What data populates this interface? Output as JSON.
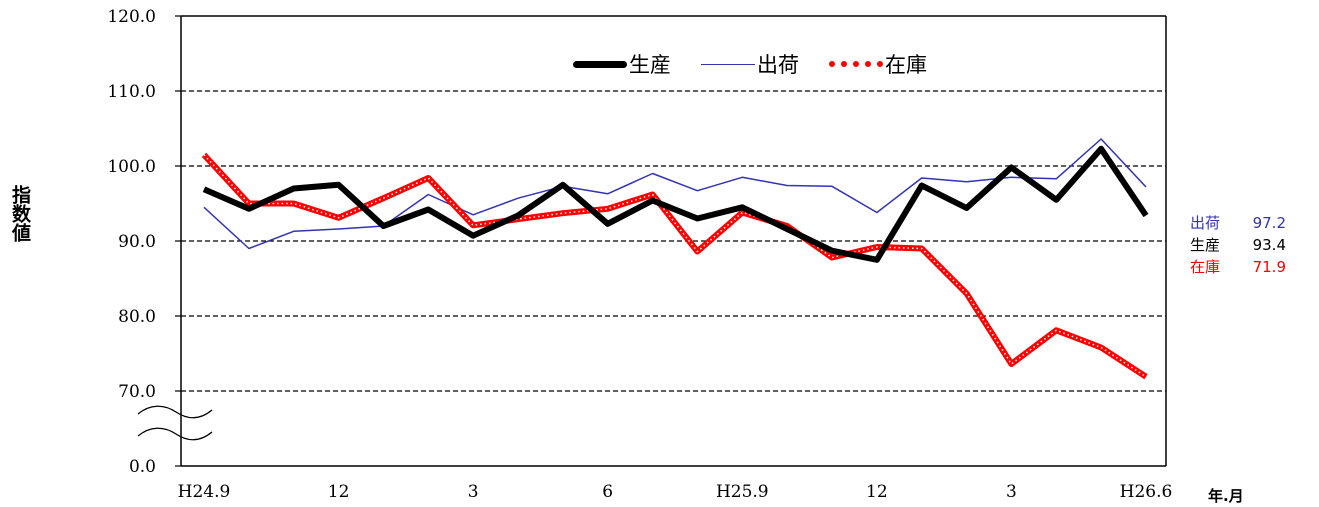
{
  "chart_data": {
    "type": "line",
    "ylabel": "指数値",
    "xlabel": "年.月",
    "y_ticks": [
      "0.0",
      "70.0",
      "80.0",
      "90.0",
      "100.0",
      "110.0",
      "120.0"
    ],
    "y_axis_break": true,
    "ylim": [
      70,
      120
    ],
    "x_ticks": [
      {
        "index": 0,
        "label": "H24.9"
      },
      {
        "index": 3,
        "label": "12"
      },
      {
        "index": 6,
        "label": "3"
      },
      {
        "index": 9,
        "label": "6"
      },
      {
        "index": 12,
        "label": "H25.9"
      },
      {
        "index": 15,
        "label": "12"
      },
      {
        "index": 18,
        "label": "3"
      },
      {
        "index": 21,
        "label": "H26.6"
      }
    ],
    "legend_position": "top-center",
    "grid": true,
    "series": [
      {
        "name": "生産",
        "color": "#000000",
        "style": "thick",
        "values": [
          96.9,
          94.3,
          97.0,
          97.5,
          92.0,
          94.2,
          90.7,
          93.4,
          97.5,
          92.3,
          95.4,
          93.0,
          94.5,
          91.6,
          88.7,
          87.5,
          97.4,
          94.4,
          99.8,
          95.5,
          102.3,
          93.4
        ]
      },
      {
        "name": "出荷",
        "color": "#3333b3",
        "style": "thin",
        "values": [
          94.5,
          89.0,
          91.3,
          91.6,
          92.0,
          96.2,
          93.5,
          95.7,
          97.3,
          96.3,
          99.0,
          96.7,
          98.5,
          97.4,
          97.3,
          93.8,
          98.4,
          97.9,
          98.5,
          98.3,
          103.6,
          97.2
        ]
      },
      {
        "name": "在庫",
        "color": "#ff0000",
        "style": "dotted",
        "values": [
          101.5,
          95.0,
          95.0,
          93.1,
          95.7,
          98.4,
          92.1,
          92.9,
          93.7,
          94.3,
          96.2,
          88.6,
          93.8,
          92.0,
          87.8,
          89.2,
          89.0,
          83.0,
          73.6,
          78.1,
          75.8,
          71.9
        ]
      }
    ],
    "end_values": [
      {
        "name": "出荷",
        "value": "97.2",
        "color": "#3333b3"
      },
      {
        "name": "生産",
        "value": "93.4",
        "color": "#000000"
      },
      {
        "name": "在庫",
        "value": "71.9",
        "color": "#ff0000"
      }
    ]
  }
}
